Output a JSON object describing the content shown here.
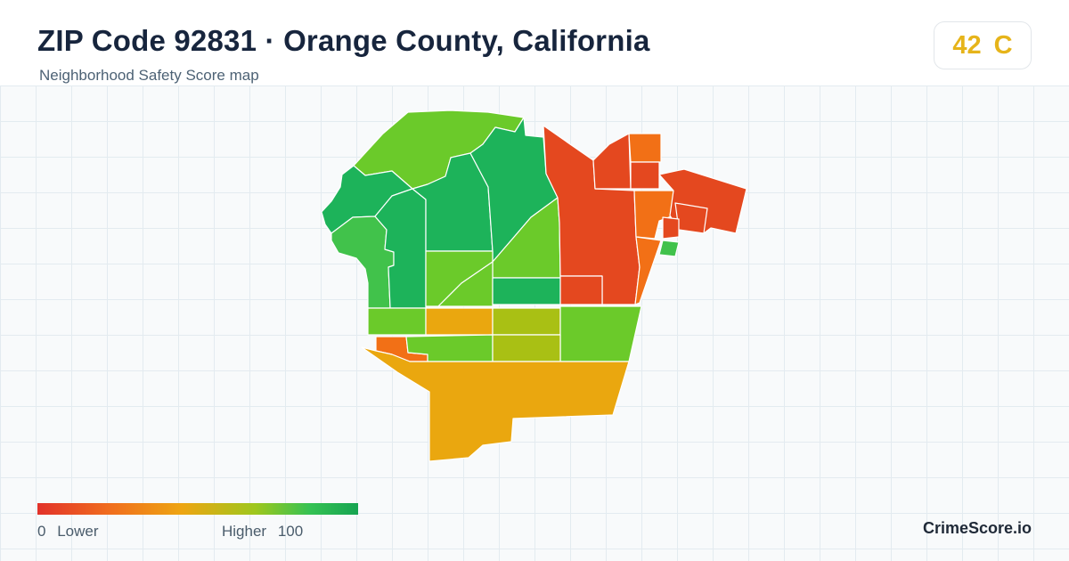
{
  "header": {
    "title": "ZIP Code 92831 · Orange County, California",
    "subtitle": "Neighborhood Safety Score map"
  },
  "score": {
    "value": "42",
    "grade": "C",
    "color": "#e6b41a"
  },
  "legend": {
    "low_value": "0",
    "low_label": "Lower",
    "high_label": "Higher",
    "high_value": "100",
    "colors": [
      "#e2322a",
      "#f06c1e",
      "#eea512",
      "#9ec71d",
      "#35c253",
      "#16a451"
    ]
  },
  "brand": "CrimeScore.io",
  "map": {
    "neighborhood_colors": {
      "very_low": "#e4481f",
      "low": "#f27016",
      "medium": "#eaa70f",
      "medium_high": "#a9c014",
      "high": "#6bca2a",
      "higher": "#41c24b",
      "highest": "#1db35a"
    }
  }
}
